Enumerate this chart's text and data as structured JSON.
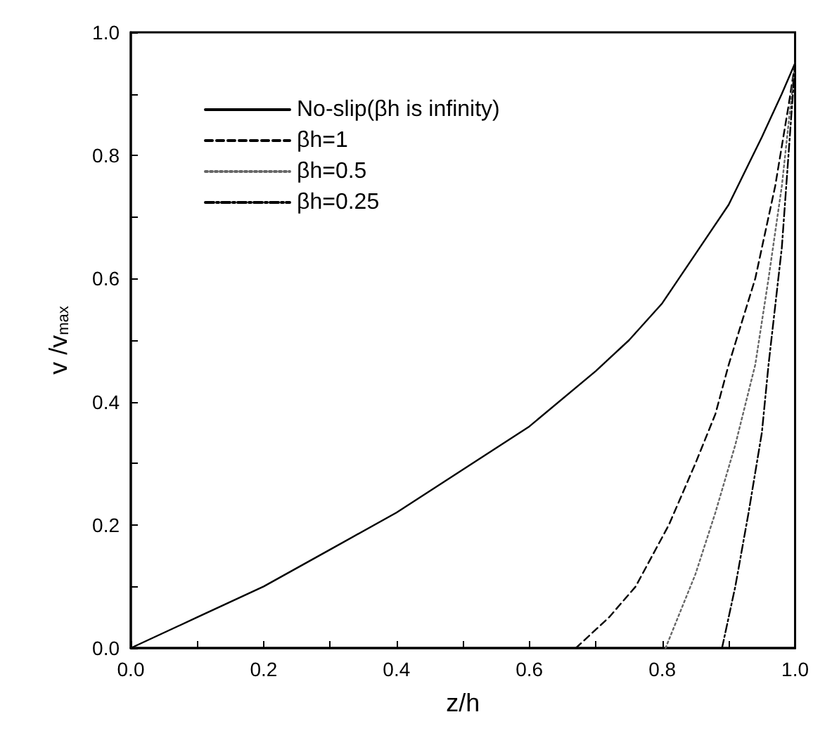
{
  "chart_data": {
    "type": "line",
    "xlabel": "z/h",
    "ylabel": "v /v$_{max}$",
    "xlim": [
      0,
      1
    ],
    "ylim": [
      0,
      1
    ],
    "xticks": [
      {
        "value": 0,
        "label": "0.0"
      },
      {
        "value": 0.1,
        "label": null
      },
      {
        "value": 0.2,
        "label": "0.2"
      },
      {
        "value": 0.3,
        "label": null
      },
      {
        "value": 0.4,
        "label": "0.4"
      },
      {
        "value": 0.5,
        "label": null
      },
      {
        "value": 0.6,
        "label": "0.6"
      },
      {
        "value": 0.7,
        "label": null
      },
      {
        "value": 0.8,
        "label": "0.8"
      },
      {
        "value": 0.9,
        "label": null
      },
      {
        "value": 1,
        "label": "1.0"
      }
    ],
    "yticks": [
      {
        "value": 0,
        "label": "0.0"
      },
      {
        "value": 0.1,
        "label": null
      },
      {
        "value": 0.2,
        "label": "0.2"
      },
      {
        "value": 0.3,
        "label": null
      },
      {
        "value": 0.4,
        "label": "0.4"
      },
      {
        "value": 0.5,
        "label": null
      },
      {
        "value": 0.6,
        "label": "0.6"
      },
      {
        "value": 0.7,
        "label": null
      },
      {
        "value": 0.8,
        "label": "0.8"
      },
      {
        "value": 0.9,
        "label": null
      },
      {
        "value": 1,
        "label": "1.0"
      }
    ],
    "grid": false,
    "legend": "top left",
    "marker": "none",
    "series": [
      {
        "name": "No-slip(βh is infinity)",
        "color": "#000000",
        "line_style": "solid",
        "x": [
          0,
          0.1,
          0.2,
          0.3,
          0.4,
          0.5,
          0.6,
          0.7,
          0.75,
          0.8,
          0.85,
          0.9,
          0.95,
          0.98,
          1
        ],
        "values": [
          0,
          0.05,
          0.1,
          0.16,
          0.22,
          0.29,
          0.36,
          0.45,
          0.5,
          0.56,
          0.64,
          0.72,
          0.83,
          0.9,
          0.95
        ]
      },
      {
        "name": "βh=1",
        "color": "#000000",
        "line_style": "dashed",
        "x": [
          0.67,
          0.72,
          0.76,
          0.81,
          0.85,
          0.88,
          0.9,
          0.94,
          0.97,
          0.99,
          1
        ],
        "values": [
          0,
          0.05,
          0.1,
          0.2,
          0.3,
          0.38,
          0.46,
          0.6,
          0.75,
          0.88,
          0.95
        ]
      },
      {
        "name": "βh=0.5",
        "color": "#666666",
        "line_style": "dotted",
        "x": [
          0.805,
          0.85,
          0.88,
          0.91,
          0.94,
          0.96,
          0.98,
          1
        ],
        "values": [
          0,
          0.12,
          0.22,
          0.33,
          0.46,
          0.6,
          0.75,
          0.95
        ]
      },
      {
        "name": "βh=0.25",
        "color": "#000000",
        "line_style": "dashdot",
        "x": [
          0.89,
          0.91,
          0.93,
          0.95,
          0.96,
          0.98,
          0.99,
          1
        ],
        "values": [
          0,
          0.1,
          0.22,
          0.35,
          0.46,
          0.65,
          0.8,
          0.95
        ]
      }
    ]
  }
}
